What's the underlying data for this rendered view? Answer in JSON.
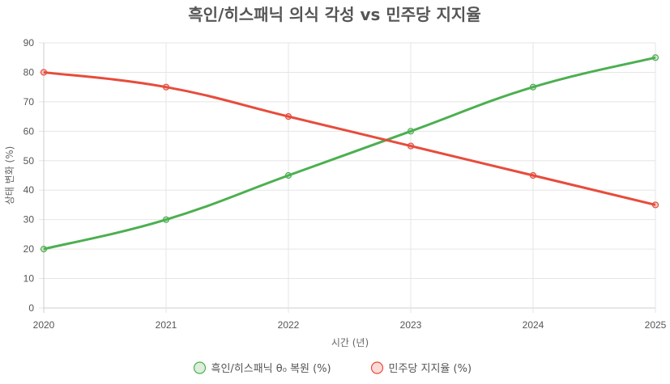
{
  "chart_data": {
    "type": "line",
    "title": "흑인/히스패닉 의식 각성 vs 민주당 지지율",
    "xlabel": "시간 (년)",
    "ylabel": "상태 변화 (%)",
    "ylim": [
      0,
      90
    ],
    "y_ticks": [
      0,
      10,
      20,
      30,
      40,
      50,
      60,
      70,
      80,
      90
    ],
    "x": [
      "2020",
      "2021",
      "2022",
      "2023",
      "2024",
      "2025"
    ],
    "grid": true,
    "legend_position": "bottom",
    "series": [
      {
        "name": "흑인/히스패닉 θ₀ 복원 (%)",
        "values": [
          20,
          30,
          45,
          60,
          75,
          85
        ],
        "color": "#4caf50"
      },
      {
        "name": "민주당 지지율 (%)",
        "values": [
          80,
          75,
          65,
          55,
          45,
          35
        ],
        "color": "#e74c3c"
      }
    ]
  }
}
